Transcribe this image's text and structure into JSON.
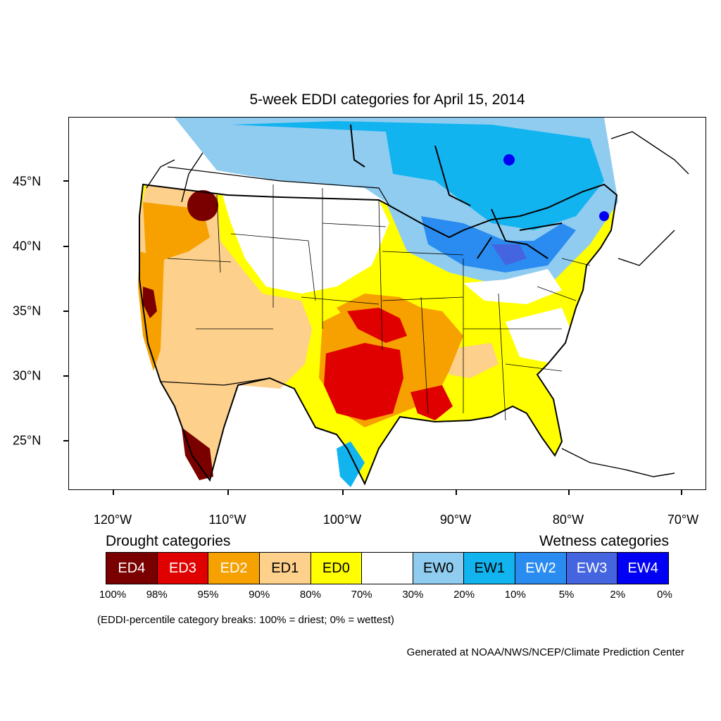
{
  "title": "5-week EDDI categories for April 15, 2014",
  "map": {
    "lat_ticks": [
      "45°N",
      "40°N",
      "35°N",
      "30°N",
      "25°N"
    ],
    "lon_ticks": [
      "120°W",
      "110°W",
      "100°W",
      "90°W",
      "80°W",
      "70°W"
    ],
    "colors": {
      "ED4": "#7a0000",
      "ED3": "#e10000",
      "ED2": "#f6a100",
      "ED1": "#fdd08c",
      "ED0": "#ffff00",
      "neutral": "#ffffff",
      "EW0": "#90ccf0",
      "EW1": "#12b4f0",
      "EW2": "#2a8cf0",
      "EW3": "#4565e0",
      "EW4": "#0000f5"
    }
  },
  "legend": {
    "drought_heading": "Drought categories",
    "wetness_heading": "Wetness categories",
    "categories": [
      {
        "label": "ED4",
        "color": "#7a0000",
        "text_color": "#ffffff"
      },
      {
        "label": "ED3",
        "color": "#e10000",
        "text_color": "#ffffff"
      },
      {
        "label": "ED2",
        "color": "#f6a100",
        "text_color": "#ffffff"
      },
      {
        "label": "ED1",
        "color": "#fdd08c",
        "text_color": "#000000"
      },
      {
        "label": "ED0",
        "color": "#ffff00",
        "text_color": "#000000"
      },
      {
        "label": "",
        "color": "#ffffff",
        "text_color": "#000000"
      },
      {
        "label": "EW0",
        "color": "#90ccf0",
        "text_color": "#000000"
      },
      {
        "label": "EW1",
        "color": "#12b4f0",
        "text_color": "#000000"
      },
      {
        "label": "EW2",
        "color": "#2a8cf0",
        "text_color": "#ffffff"
      },
      {
        "label": "EW3",
        "color": "#4565e0",
        "text_color": "#ffffff"
      },
      {
        "label": "EW4",
        "color": "#0000f5",
        "text_color": "#ffffff"
      }
    ],
    "breaks": [
      "100%",
      "98%",
      "95%",
      "90%",
      "80%",
      "70%",
      "30%",
      "20%",
      "10%",
      "5%",
      "2%",
      "0%"
    ]
  },
  "note": "(EDDI-percentile category breaks: 100% = driest; 0% = wettest)",
  "credit": "Generated at NOAA/NWS/NCEP/Climate Prediction Center"
}
